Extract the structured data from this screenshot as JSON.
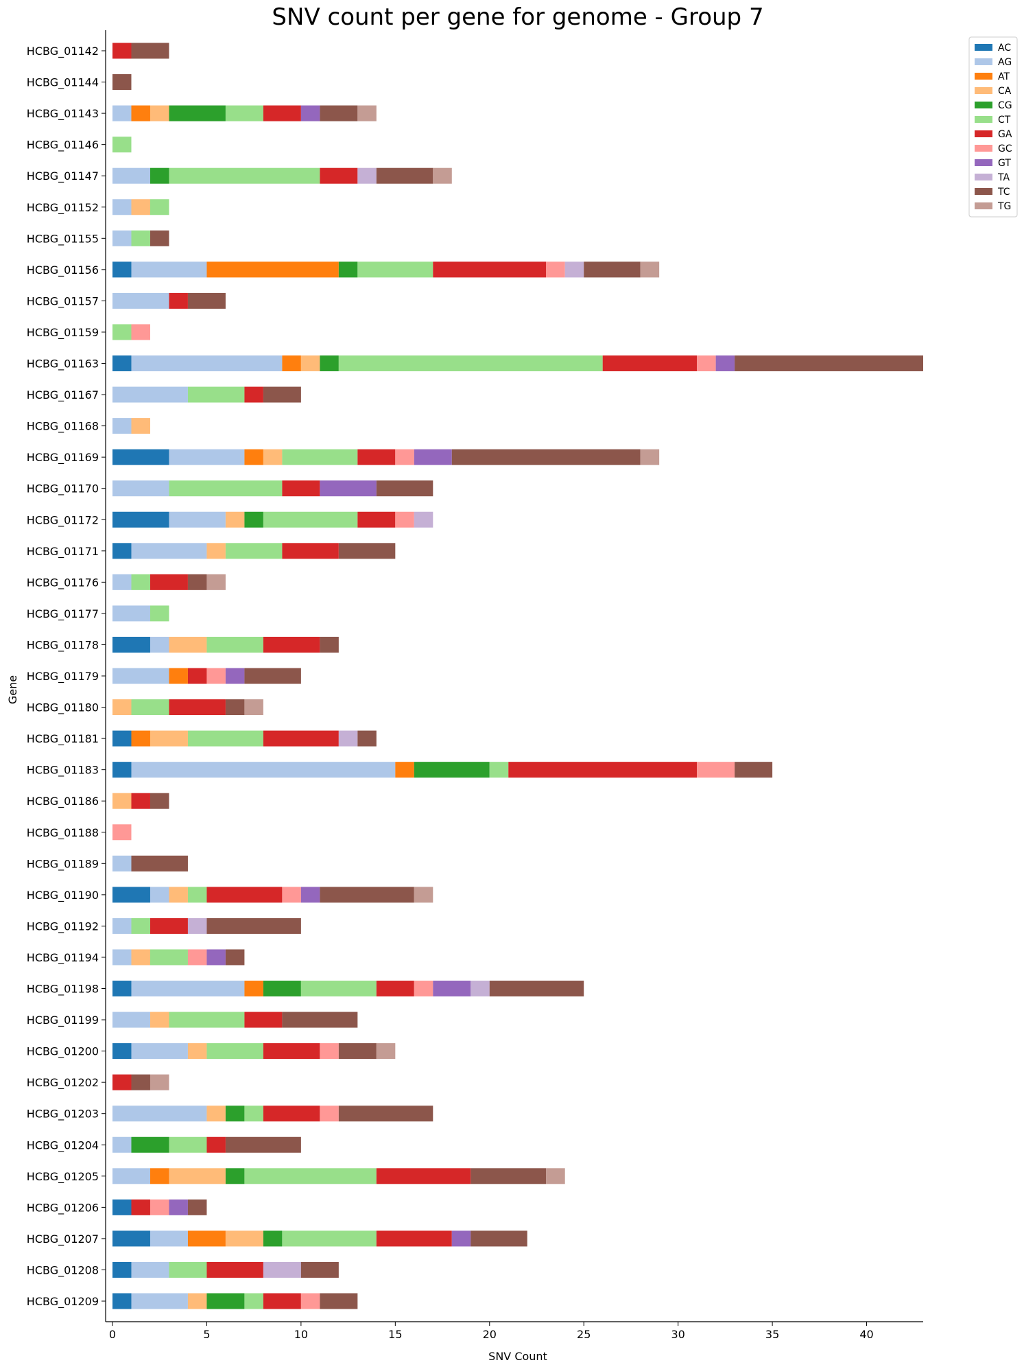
{
  "chart_data": {
    "type": "bar",
    "orientation": "horizontal",
    "stacked": true,
    "title": "SNV count per gene for genome - Group 7",
    "xlabel": "SNV Count",
    "ylabel": "Gene",
    "xlim": [
      0,
      43
    ],
    "xticks": [
      0,
      5,
      10,
      15,
      20,
      25,
      30,
      35,
      40
    ],
    "grid": false,
    "legend_position": "top-right",
    "categories": [
      "HCBG_01142",
      "HCBG_01144",
      "HCBG_01143",
      "HCBG_01146",
      "HCBG_01147",
      "HCBG_01152",
      "HCBG_01155",
      "HCBG_01156",
      "HCBG_01157",
      "HCBG_01159",
      "HCBG_01163",
      "HCBG_01167",
      "HCBG_01168",
      "HCBG_01169",
      "HCBG_01170",
      "HCBG_01172",
      "HCBG_01171",
      "HCBG_01176",
      "HCBG_01177",
      "HCBG_01178",
      "HCBG_01179",
      "HCBG_01180",
      "HCBG_01181",
      "HCBG_01183",
      "HCBG_01186",
      "HCBG_01188",
      "HCBG_01189",
      "HCBG_01190",
      "HCBG_01192",
      "HCBG_01194",
      "HCBG_01198",
      "HCBG_01199",
      "HCBG_01200",
      "HCBG_01202",
      "HCBG_01203",
      "HCBG_01204",
      "HCBG_01205",
      "HCBG_01206",
      "HCBG_01207",
      "HCBG_01208",
      "HCBG_01209"
    ],
    "series": [
      {
        "name": "AC",
        "color": "#1f77b4",
        "values": [
          0,
          0,
          0,
          0,
          0,
          0,
          0,
          1,
          0,
          0,
          1,
          0,
          0,
          3,
          0,
          3,
          1,
          0,
          0,
          2,
          0,
          0,
          1,
          1,
          0,
          0,
          0,
          2,
          0,
          0,
          1,
          0,
          1,
          0,
          0,
          0,
          0,
          1,
          2,
          1,
          1
        ]
      },
      {
        "name": "AG",
        "color": "#aec7e8",
        "values": [
          0,
          0,
          1,
          0,
          2,
          1,
          1,
          4,
          3,
          0,
          8,
          4,
          1,
          4,
          3,
          3,
          4,
          1,
          2,
          1,
          3,
          0,
          0,
          14,
          0,
          0,
          1,
          1,
          1,
          1,
          6,
          2,
          3,
          0,
          5,
          1,
          2,
          0,
          2,
          2,
          3
        ]
      },
      {
        "name": "AT",
        "color": "#ff7f0e",
        "values": [
          0,
          0,
          1,
          0,
          0,
          0,
          0,
          7,
          0,
          0,
          1,
          0,
          0,
          1,
          0,
          0,
          0,
          0,
          0,
          0,
          1,
          0,
          1,
          1,
          0,
          0,
          0,
          0,
          0,
          0,
          1,
          0,
          0,
          0,
          0,
          0,
          1,
          0,
          2,
          0,
          0
        ]
      },
      {
        "name": "CA",
        "color": "#ffbb78",
        "values": [
          0,
          0,
          1,
          0,
          0,
          1,
          0,
          0,
          0,
          0,
          1,
          0,
          1,
          1,
          0,
          1,
          1,
          0,
          0,
          2,
          0,
          1,
          2,
          0,
          1,
          0,
          0,
          1,
          0,
          1,
          0,
          1,
          1,
          0,
          1,
          0,
          3,
          0,
          2,
          0,
          1
        ]
      },
      {
        "name": "CG",
        "color": "#2ca02c",
        "values": [
          0,
          0,
          3,
          0,
          1,
          0,
          0,
          1,
          0,
          0,
          1,
          0,
          0,
          0,
          0,
          1,
          0,
          0,
          0,
          0,
          0,
          0,
          0,
          4,
          0,
          0,
          0,
          0,
          0,
          0,
          2,
          0,
          0,
          0,
          1,
          2,
          1,
          0,
          1,
          0,
          2
        ]
      },
      {
        "name": "CT",
        "color": "#98df8a",
        "values": [
          0,
          0,
          2,
          1,
          8,
          1,
          1,
          4,
          0,
          1,
          14,
          3,
          0,
          4,
          6,
          5,
          3,
          1,
          1,
          3,
          0,
          2,
          4,
          1,
          0,
          0,
          0,
          1,
          1,
          2,
          4,
          4,
          3,
          0,
          1,
          2,
          7,
          0,
          5,
          2,
          1
        ]
      },
      {
        "name": "GA",
        "color": "#d62728",
        "values": [
          1,
          0,
          2,
          0,
          2,
          0,
          0,
          6,
          1,
          0,
          5,
          1,
          0,
          2,
          2,
          2,
          3,
          2,
          0,
          3,
          1,
          3,
          4,
          10,
          1,
          0,
          0,
          4,
          2,
          0,
          2,
          2,
          3,
          1,
          3,
          1,
          5,
          1,
          4,
          3,
          2
        ]
      },
      {
        "name": "GC",
        "color": "#ff9896",
        "values": [
          0,
          0,
          0,
          0,
          0,
          0,
          0,
          1,
          0,
          1,
          1,
          0,
          0,
          1,
          0,
          1,
          0,
          0,
          0,
          0,
          1,
          0,
          0,
          2,
          0,
          1,
          0,
          1,
          0,
          1,
          1,
          0,
          1,
          0,
          1,
          0,
          0,
          1,
          0,
          0,
          1
        ]
      },
      {
        "name": "GT",
        "color": "#9467bd",
        "values": [
          0,
          0,
          1,
          0,
          0,
          0,
          0,
          0,
          0,
          0,
          1,
          0,
          0,
          2,
          3,
          0,
          0,
          0,
          0,
          0,
          1,
          0,
          0,
          0,
          0,
          0,
          0,
          1,
          0,
          1,
          2,
          0,
          0,
          0,
          0,
          0,
          0,
          1,
          1,
          0,
          0
        ]
      },
      {
        "name": "TA",
        "color": "#c5b0d5",
        "values": [
          0,
          0,
          0,
          0,
          1,
          0,
          0,
          1,
          0,
          0,
          0,
          0,
          0,
          0,
          0,
          1,
          0,
          0,
          0,
          0,
          0,
          0,
          1,
          0,
          0,
          0,
          0,
          0,
          1,
          0,
          1,
          0,
          0,
          0,
          0,
          0,
          0,
          0,
          0,
          2,
          0
        ]
      },
      {
        "name": "TC",
        "color": "#8c564b",
        "values": [
          2,
          1,
          2,
          0,
          3,
          0,
          1,
          3,
          2,
          0,
          10,
          2,
          0,
          10,
          3,
          0,
          3,
          1,
          0,
          1,
          3,
          1,
          1,
          2,
          1,
          0,
          3,
          5,
          5,
          1,
          5,
          4,
          2,
          1,
          5,
          4,
          4,
          1,
          3,
          2,
          2
        ]
      },
      {
        "name": "TG",
        "color": "#c49c94",
        "values": [
          0,
          0,
          1,
          0,
          1,
          0,
          0,
          1,
          0,
          0,
          0,
          0,
          0,
          1,
          0,
          0,
          0,
          1,
          0,
          0,
          0,
          1,
          0,
          0,
          0,
          0,
          0,
          1,
          0,
          0,
          0,
          0,
          1,
          1,
          0,
          0,
          1,
          0,
          0,
          0,
          0
        ]
      }
    ]
  }
}
